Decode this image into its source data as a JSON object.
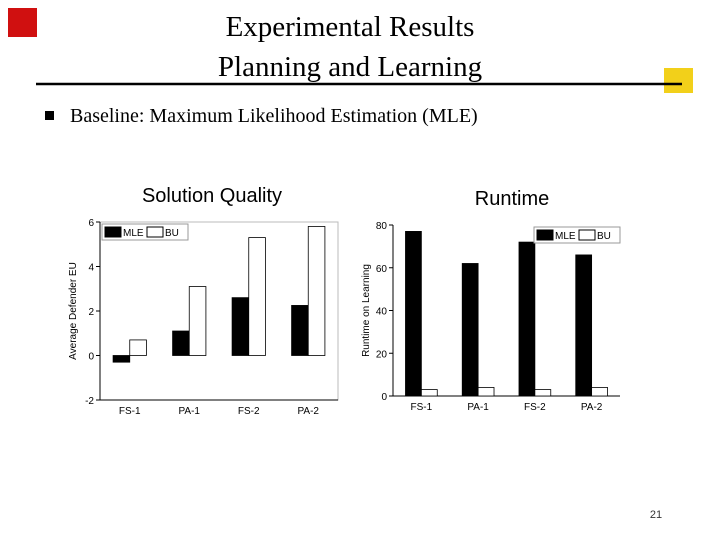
{
  "header": {
    "title_lines": [
      "Experimental Results",
      "Planning and Learning"
    ]
  },
  "bullets": [
    "Baseline: Maximum Likelihood Estimation (MLE)"
  ],
  "page_number": "21",
  "chart_data": [
    {
      "type": "bar",
      "title": "Solution Quality",
      "y_label": "Average Defender EU",
      "categories": [
        "FS-1",
        "PA-1",
        "FS-2",
        "PA-2"
      ],
      "series": [
        {
          "name": "MLE",
          "color": "#000000",
          "values": [
            -0.3,
            1.1,
            2.6,
            2.25
          ]
        },
        {
          "name": "BU",
          "color": "#ffffff",
          "values": [
            0.7,
            3.1,
            5.3,
            5.8
          ]
        }
      ],
      "ylim": [
        -2,
        6
      ],
      "yticks": [
        -2,
        0,
        2,
        4,
        6
      ],
      "legend": "upper left"
    },
    {
      "type": "bar",
      "title": "Runtime",
      "y_label": "Runtime on Learning",
      "categories": [
        "FS-1",
        "PA-1",
        "FS-2",
        "PA-2"
      ],
      "series": [
        {
          "name": "MLE",
          "color": "#000000",
          "values": [
            77,
            62,
            72,
            66
          ]
        },
        {
          "name": "BU",
          "color": "#ffffff",
          "values": [
            3,
            4,
            3,
            4
          ]
        }
      ],
      "ylim": [
        0,
        80
      ],
      "yticks": [
        0,
        20,
        40,
        60,
        80
      ],
      "legend": "upper right"
    }
  ]
}
